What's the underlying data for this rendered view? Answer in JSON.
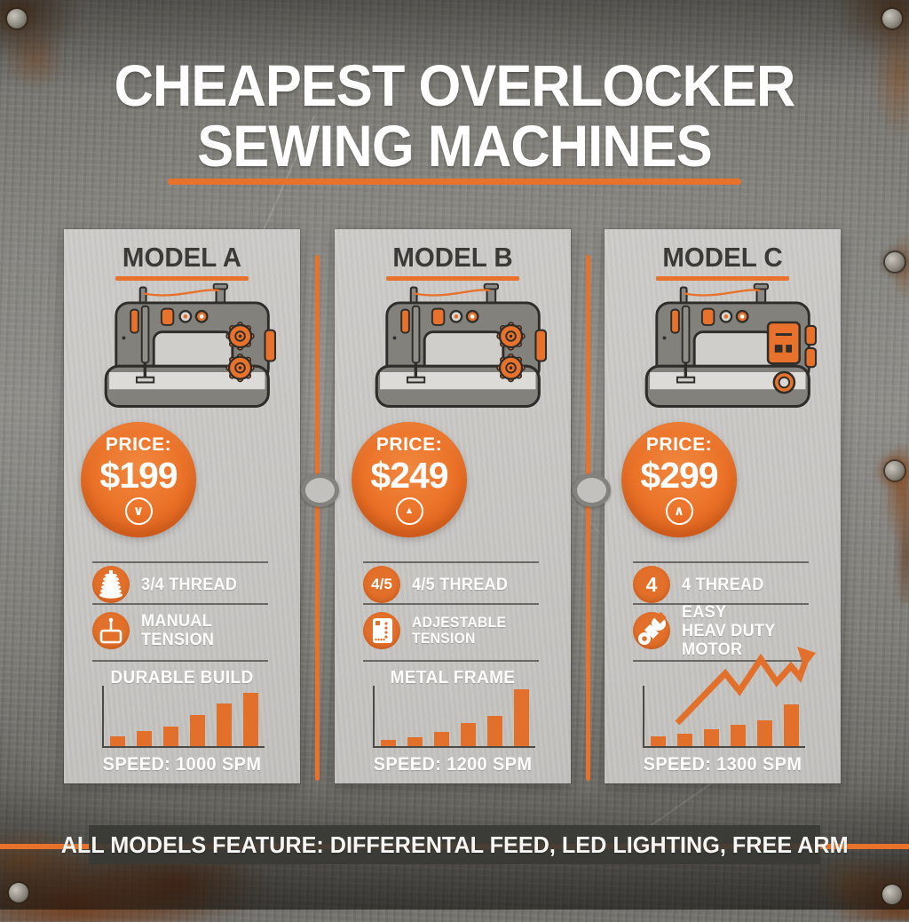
{
  "header": {
    "title_line1": "CHEAPEST OVERLOCKER",
    "title_line2": "SEWING MACHINES"
  },
  "footer": {
    "banner": "ALL MODELS FEATURE: DIFFERENTAL FEED, LED LIGHTING, FREE ARM"
  },
  "colors": {
    "accent_orange": "#E8722B",
    "bar_orange": "#E2702A",
    "card_bg": "#C9C8C5",
    "metal_gray": "#7B7A74",
    "banner_bg": "#3A3935",
    "card_title_text": "#3B3A37",
    "white_text": "#FFFFFF"
  },
  "cards": [
    {
      "title": "MODEL A",
      "machine_icon": "sewing-machine-gears-illustration",
      "price_label": "PRICE:",
      "price": "$199",
      "price_icon": "chevron-down-circle-icon",
      "price_icon_glyph": "∨",
      "features": [
        {
          "icon": "thread-spool-icon",
          "lines": [
            "3/4 THREAD"
          ]
        },
        {
          "icon": "presser-foot-icon",
          "lines": [
            "MANUAL",
            "TENSION"
          ]
        }
      ],
      "chart_title": "DURABLE BUILD",
      "speed": "SPEED: 1000 SPM",
      "bars": [
        0.16,
        0.25,
        0.32,
        0.52,
        0.7,
        0.88
      ]
    },
    {
      "title": "MODEL B",
      "machine_icon": "sewing-machine-gears-illustration",
      "price_label": "PRICE:",
      "price": "$249",
      "price_icon": "triangle-up-circle-icon",
      "price_icon_glyph": "▲",
      "features": [
        {
          "icon": "thread-count-badge-icon",
          "badge_text": "4/5",
          "lines": [
            "4/5 THREAD"
          ]
        },
        {
          "icon": "tension-panel-icon",
          "lines": [
            "ADJESTABLE TENSION"
          ]
        }
      ],
      "chart_title": "METAL FRAME",
      "speed": "SPEED: 1200 SPM",
      "bars": [
        0.11,
        0.15,
        0.24,
        0.38,
        0.5,
        0.94
      ]
    },
    {
      "title": "MODEL C",
      "machine_icon": "sewing-machine-panel-illustration",
      "price_label": "PRICE:",
      "price": "$299",
      "price_icon": "chevron-up-circle-icon",
      "price_icon_glyph": "∧",
      "features": [
        {
          "icon": "thread-count-badge-icon",
          "badge_text": "4",
          "lines": [
            "4 THREAD"
          ]
        },
        {
          "icon": "wrench-icon",
          "lines": [
            "EASY",
            "HEAV DUTY MOTOR"
          ]
        }
      ],
      "chart_title": "",
      "speed": "SPEED: 1300 SPM",
      "bars": [
        0.16,
        0.21,
        0.28,
        0.36,
        0.43,
        0.69
      ]
    }
  ],
  "chart_data": [
    {
      "type": "bar",
      "title": "DURABLE BUILD",
      "caption": "SPEED: 1000 SPM",
      "categories": [
        "1",
        "2",
        "3",
        "4",
        "5",
        "6"
      ],
      "values_relative": [
        0.18,
        0.28,
        0.36,
        0.59,
        0.79,
        1.0
      ],
      "bar_color": "#E2702A",
      "legend": "none",
      "grid": "off"
    },
    {
      "type": "bar",
      "title": "METAL FRAME",
      "caption": "SPEED: 1200 SPM",
      "categories": [
        "1",
        "2",
        "3",
        "4",
        "5",
        "6"
      ],
      "values_relative": [
        0.12,
        0.16,
        0.25,
        0.4,
        0.53,
        1.0
      ],
      "bar_color": "#E2702A",
      "legend": "none",
      "grid": "off"
    },
    {
      "type": "bar",
      "title": "",
      "caption": "SPEED: 1300 SPM",
      "categories": [
        "1",
        "2",
        "3",
        "4",
        "5",
        "6"
      ],
      "values_relative": [
        0.23,
        0.29,
        0.4,
        0.52,
        0.62,
        1.0
      ],
      "bar_color": "#E2702A",
      "legend": "none",
      "grid": "off",
      "overlay": "rising zigzag trend line with arrow"
    }
  ]
}
